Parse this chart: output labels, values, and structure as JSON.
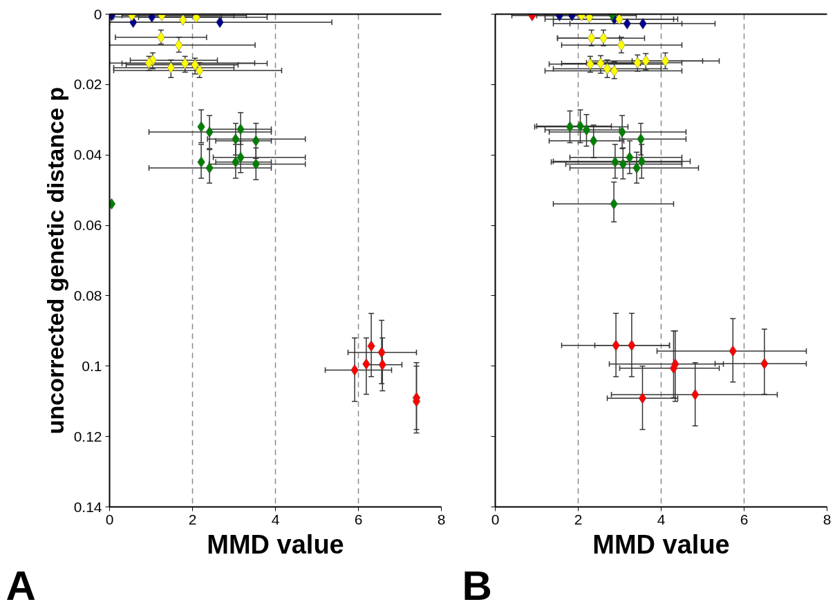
{
  "chart_data": [
    {
      "type": "scatter",
      "xlabel": "MMD value",
      "ylabel": "uncorrected genetic distance p",
      "annotations": [
        "A"
      ],
      "xlim": [
        0,
        8
      ],
      "xticks": [
        0,
        2,
        4,
        6,
        8
      ],
      "ylim": [
        0.14,
        0
      ],
      "yticks": [
        0,
        0.02,
        0.04,
        0.06,
        0.08,
        0.1,
        0.12,
        0.14
      ],
      "grid": "x",
      "marker": "diamond",
      "series": [
        {
          "color": "#00008b",
          "x": [
            0.05,
            0.57,
            1.02,
            2.66
          ],
          "values": [
            0.0004,
            0.0023,
            0.0008,
            0.0023
          ],
          "xerrors": [
            null,
            [
              0,
              1.77
            ],
            [
              0.1,
              2.7
            ],
            [
              0,
              5.36
            ]
          ],
          "errors": [
            null,
            null,
            null,
            null
          ]
        },
        {
          "color": "#ffff00",
          "x": [
            0.54,
            1.26,
            1.77,
            2.09,
            1.24,
            1.67,
            1.04,
            0.95,
            1.48,
            1.82,
            2.06,
            2.17
          ],
          "values": [
            0.0004,
            0.0004,
            0.0016,
            0.0009,
            0.0066,
            0.0088,
            0.0131,
            0.0139,
            0.0152,
            0.014,
            0.0144,
            0.016
          ],
          "xerrors": [
            [
              0.3,
              3.0
            ],
            [
              0.5,
              3.3
            ],
            null,
            [
              0.7,
              3.8
            ],
            [
              0.14,
              2.34
            ],
            [
              0,
              3.51
            ],
            [
              0.5,
              2.6
            ],
            [
              0,
              3.5
            ],
            [
              0.1,
              3.0
            ],
            [
              0.3,
              3.8
            ],
            [
              0.4,
              3.1
            ],
            [
              0.1,
              4.15
            ]
          ],
          "errors": [
            null,
            null,
            null,
            null,
            [
              0.0045,
              0.0085
            ],
            [
              0.0066,
              0.0108
            ],
            [
              0.011,
              0.0155
            ],
            [
              0.012,
              0.016
            ],
            [
              0.013,
              0.018
            ],
            [
              0.012,
              0.0165
            ],
            [
              0.0125,
              0.017
            ],
            [
              0.0138,
              0.018
            ]
          ]
        },
        {
          "color": "#008000",
          "x": [
            2.21,
            2.41,
            3.16,
            3.04,
            3.53,
            2.21,
            2.41,
            3.04,
            3.16,
            3.53,
            0.05
          ],
          "values": [
            0.032,
            0.0335,
            0.0327,
            0.0355,
            0.036,
            0.042,
            0.0437,
            0.042,
            0.0407,
            0.0426,
            0.0539
          ],
          "xerrors": [
            null,
            [
              0.95,
              3.9
            ],
            [
              2.41,
              3.9
            ],
            [
              2.36,
              4.72
            ],
            [
              2.56,
              3.9
            ],
            null,
            [
              0.95,
              3.9
            ],
            [
              2.56,
              3.9
            ],
            [
              2.5,
              4.72
            ],
            [
              2.4,
              4.72
            ],
            null
          ],
          "errors": [
            [
              0.0272,
              0.0365
            ],
            [
              0.0288,
              0.0382
            ],
            [
              0.028,
              0.037
            ],
            [
              0.031,
              0.04
            ],
            [
              0.031,
              0.041
            ],
            [
              0.037,
              0.0466
            ],
            [
              0.0385,
              0.048
            ],
            [
              0.037,
              0.0466
            ],
            [
              0.036,
              0.045
            ],
            [
              0.038,
              0.047
            ],
            null
          ]
        },
        {
          "color": "#ff0000",
          "x": [
            6.31,
            6.56,
            6.19,
            6.58,
            5.91,
            7.4,
            7.4
          ],
          "values": [
            0.0943,
            0.0961,
            0.0994,
            0.0996,
            0.1011,
            0.109,
            0.11
          ],
          "xerrors": [
            null,
            [
              5.75,
              7.4
            ],
            null,
            [
              6.2,
              7.05
            ],
            [
              5.2,
              6.8
            ],
            null,
            null
          ],
          "errors": [
            [
              0.085,
              0.103
            ],
            [
              0.087,
              0.105
            ],
            [
              0.092,
              0.108
            ],
            [
              0.092,
              0.107
            ],
            [
              0.092,
              0.11
            ],
            [
              0.1,
              0.119
            ],
            [
              0.099,
              0.118
            ]
          ]
        }
      ]
    },
    {
      "type": "scatter",
      "xlabel": "MMD value",
      "annotations": [
        "B"
      ],
      "xlim": [
        0,
        8
      ],
      "xticks": [
        0,
        2,
        4,
        6,
        8
      ],
      "ylim": [
        0.14,
        0
      ],
      "yticks": [
        0,
        0.02,
        0.04,
        0.06,
        0.08,
        0.1,
        0.12,
        0.14
      ],
      "tick_labels": "x",
      "grid": "x",
      "marker": "diamond",
      "series": [
        {
          "color": "#00008b",
          "x": [
            1.55,
            1.85,
            2.87,
            3.18,
            3.56
          ],
          "values": [
            0.0004,
            0.0004,
            0.0014,
            0.0027,
            0.0027
          ],
          "xerrors": [
            [
              1.2,
              3.4
            ],
            null,
            [
              1.2,
              4.3
            ],
            [
              1.4,
              4.5
            ],
            [
              1.8,
              5.3
            ]
          ],
          "errors": [
            null,
            null,
            null,
            null,
            null
          ]
        },
        {
          "color": "#ffff00",
          "x": [
            2.08,
            2.27,
            2.99,
            2.32,
            2.61,
            3.04,
            2.29,
            2.54,
            2.7,
            2.87,
            3.43,
            3.63,
            4.1
          ],
          "values": [
            0.0004,
            0.0009,
            0.0014,
            0.0068,
            0.0068,
            0.0088,
            0.0142,
            0.014,
            0.0155,
            0.0161,
            0.0138,
            0.0133,
            0.0133
          ],
          "xerrors": [
            [
              1.0,
              3.0
            ],
            null,
            [
              1.4,
              4.4
            ],
            [
              1.5,
              3.0
            ],
            [
              1.5,
              3.6
            ],
            [
              1.6,
              4.5
            ],
            [
              1.3,
              4.1
            ],
            [
              1.6,
              3.5
            ],
            [
              1.4,
              4.0
            ],
            [
              1.2,
              4.5
            ],
            [
              2.2,
              4.5
            ],
            [
              2.3,
              5.0
            ],
            [
              3.3,
              5.4
            ]
          ],
          "errors": [
            null,
            null,
            null,
            [
              0.0045,
              0.009
            ],
            [
              0.0045,
              0.009
            ],
            [
              0.0066,
              0.011
            ],
            [
              0.012,
              0.0165
            ],
            [
              0.0118,
              0.0168
            ],
            [
              0.013,
              0.018
            ],
            [
              0.0135,
              0.0183
            ],
            [
              0.0116,
              0.0162
            ],
            [
              0.0112,
              0.0158
            ],
            [
              0.011,
              0.0155
            ]
          ]
        },
        {
          "color": "#008000",
          "x": [
            2.82,
            1.8,
            2.05,
            2.2,
            2.37,
            3.06,
            3.51,
            2.89,
            3.08,
            3.24,
            3.53,
            3.41,
            2.86
          ],
          "values": [
            0.0002,
            0.032,
            0.0318,
            0.0329,
            0.036,
            0.0335,
            0.0355,
            0.042,
            0.0426,
            0.0407,
            0.0418,
            0.0437,
            0.0539
          ],
          "xerrors": [
            null,
            [
              0.95,
              3.2
            ],
            [
              1.0,
              2.8
            ],
            [
              1.2,
              3.0
            ],
            [
              1.3,
              3.1
            ],
            [
              1.3,
              4.6
            ],
            [
              3.0,
              4.6
            ],
            [
              1.35,
              4.5
            ],
            [
              1.7,
              4.5
            ],
            [
              1.8,
              4.5
            ],
            [
              1.4,
              4.7
            ],
            [
              1.8,
              4.9
            ],
            [
              1.4,
              4.3
            ]
          ],
          "errors": [
            null,
            [
              0.0275,
              0.0365
            ],
            [
              0.0272,
              0.0365
            ],
            [
              0.0285,
              0.0375
            ],
            [
              0.0315,
              0.0408
            ],
            [
              0.0288,
              0.0382
            ],
            [
              0.031,
              0.04
            ],
            [
              0.037,
              0.0466
            ],
            [
              0.038,
              0.0468
            ],
            [
              0.036,
              0.0453
            ],
            [
              0.037,
              0.0466
            ],
            [
              0.0392,
              0.048
            ],
            [
              0.0477,
              0.059
            ]
          ]
        },
        {
          "color": "#ff0000",
          "x": [
            0.89,
            2.91,
            3.29,
            5.73,
            6.49,
            4.34,
            4.3,
            3.55,
            4.82
          ],
          "values": [
            0.0004,
            0.0941,
            0.0941,
            0.0957,
            0.0993,
            0.0994,
            0.1006,
            0.1091,
            0.1081
          ],
          "xerrors": [
            [
              0.4,
              1.5
            ],
            [
              1.6,
              4.2
            ],
            [
              2.4,
              4.2
            ],
            [
              3.9,
              7.5
            ],
            [
              5.3,
              7.5
            ],
            [
              2.75,
              5.5
            ],
            [
              3.0,
              5.4
            ],
            [
              2.7,
              4.4
            ],
            [
              2.8,
              6.8
            ]
          ],
          "errors": [
            null,
            [
              0.085,
              0.103
            ],
            [
              0.085,
              0.103
            ],
            [
              0.0865,
              0.1045
            ],
            [
              0.0895,
              0.108
            ],
            [
              0.09,
              0.11
            ],
            [
              0.09,
              0.109
            ],
            [
              0.1,
              0.118
            ],
            [
              0.099,
              0.117
            ]
          ]
        }
      ]
    }
  ]
}
